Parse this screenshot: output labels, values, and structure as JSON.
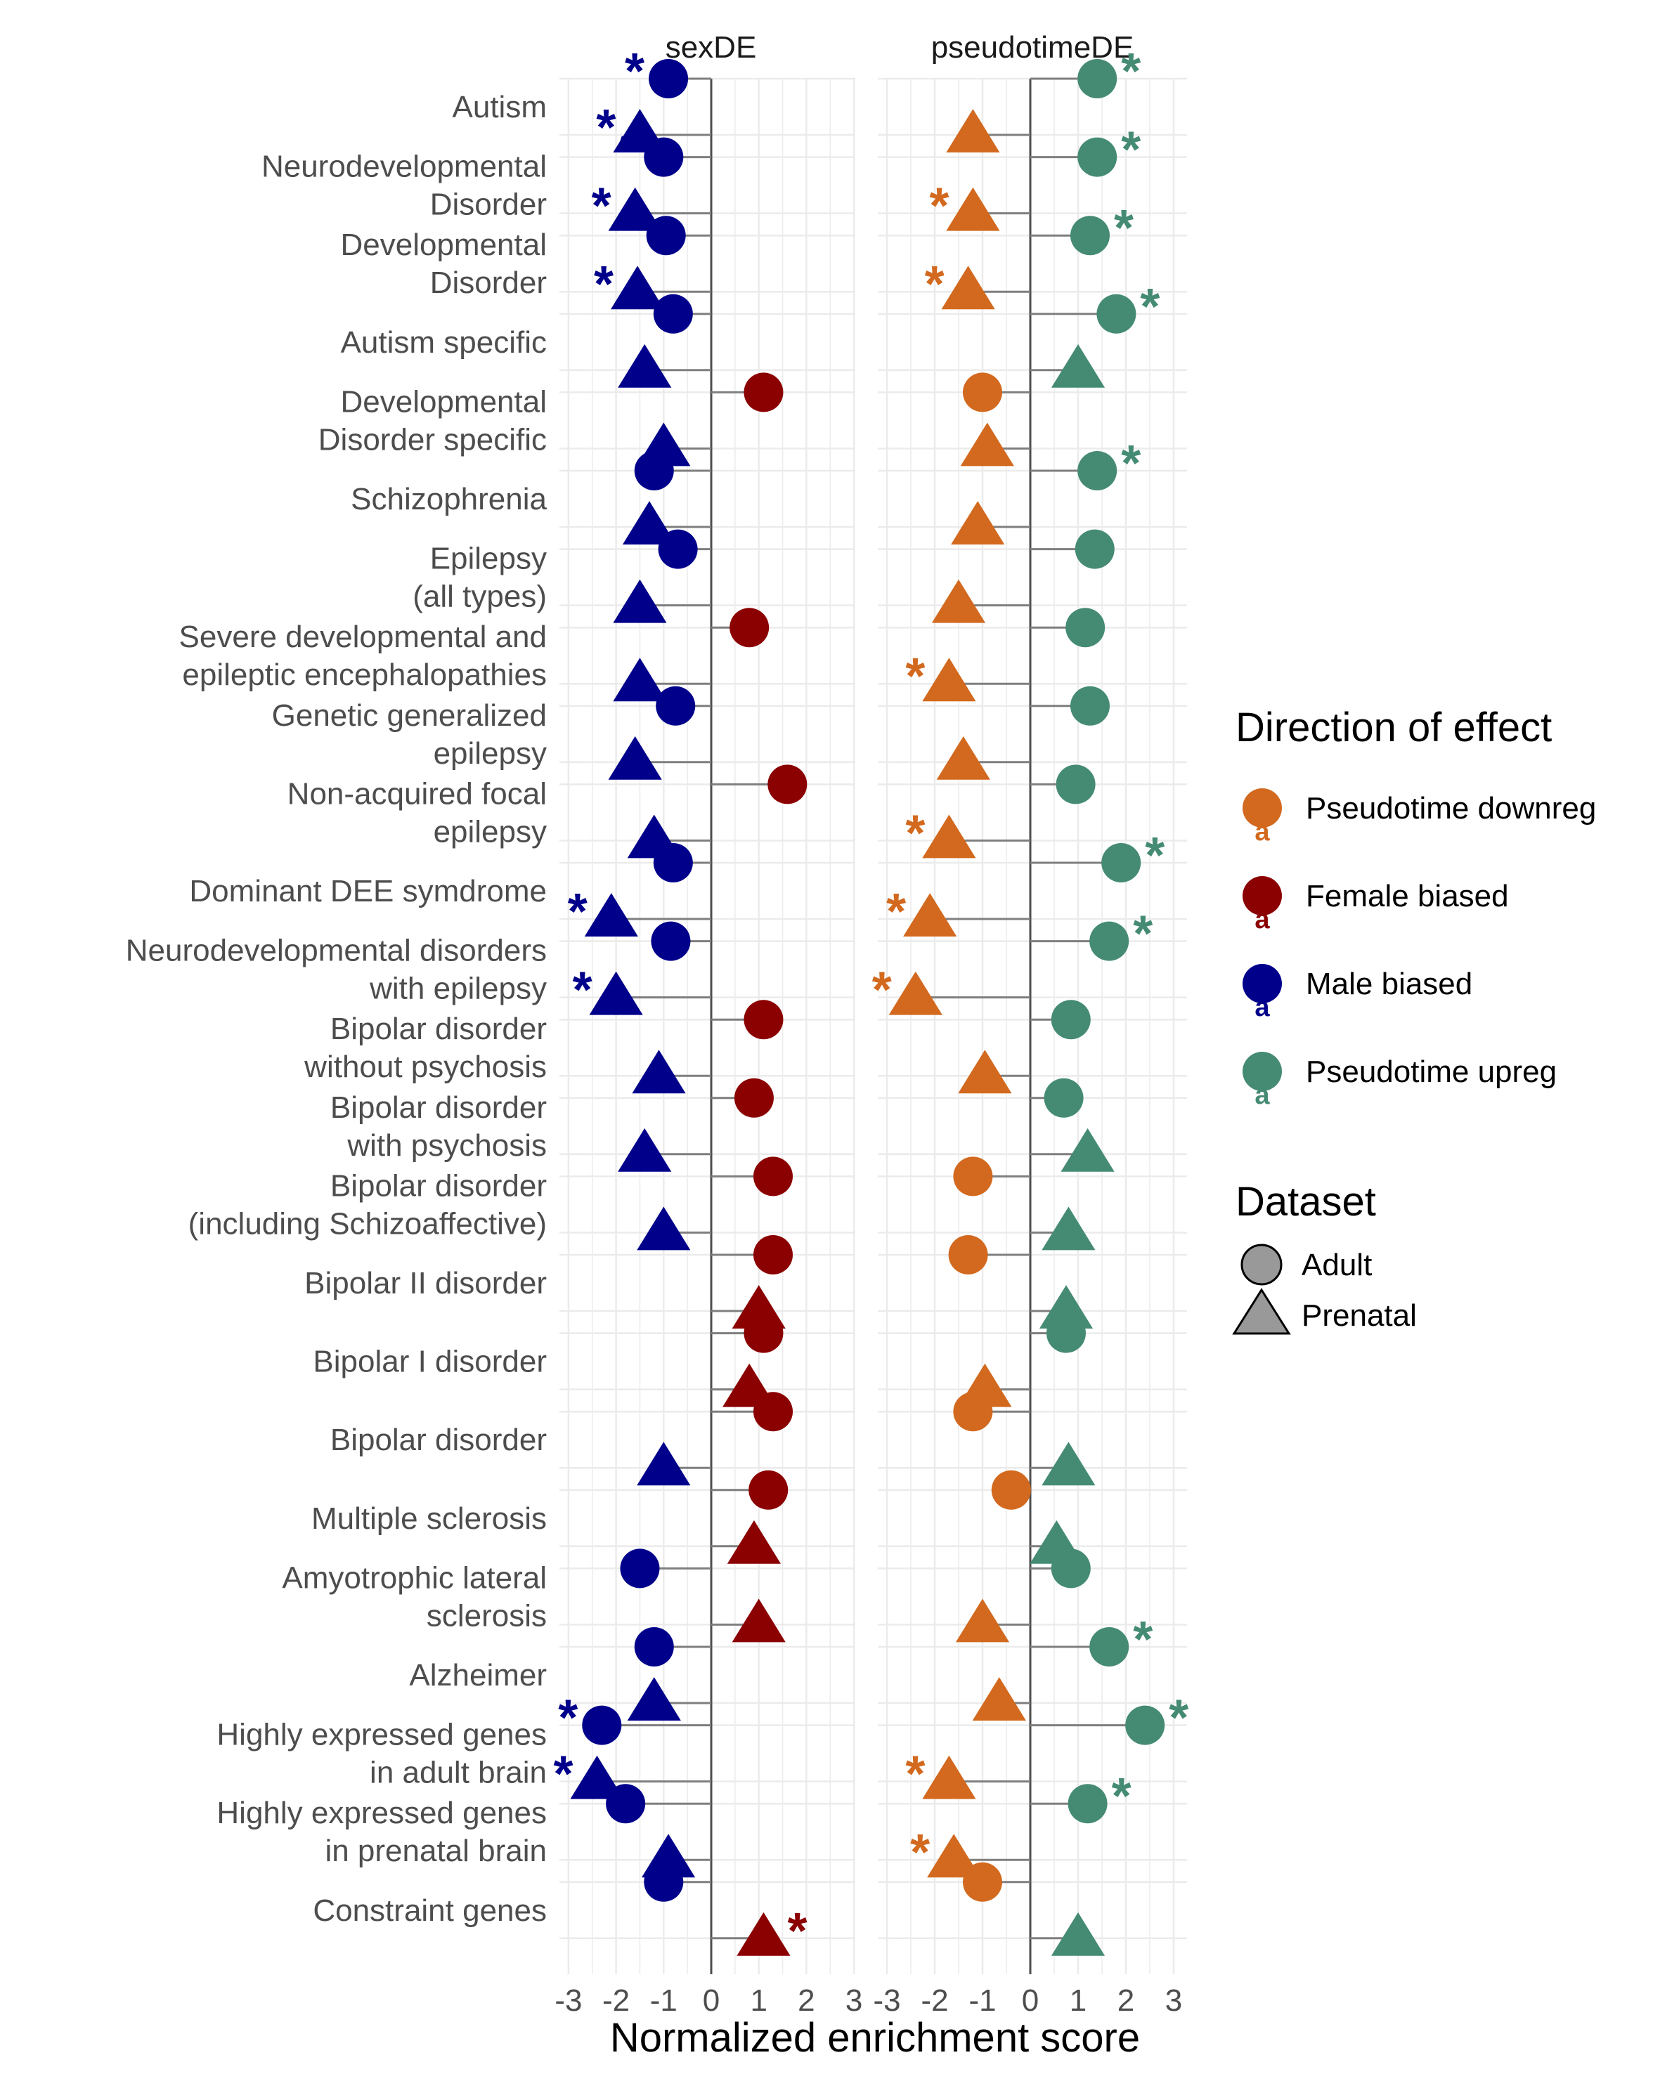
{
  "chart_data": {
    "type": "scatter",
    "xlabel": "Normalized enrichment score",
    "xlim": [
      -3,
      3
    ],
    "xticks": [
      -3,
      -2,
      -1,
      0,
      1,
      2,
      3
    ],
    "grid": true,
    "legend_placement": "right",
    "panels": [
      "sexDE",
      "pseudotimeDE"
    ],
    "categories": [
      "Autism",
      "Neurodevelopmental\nDisorder",
      "Developmental\nDisorder",
      "Autism specific",
      "Developmental\nDisorder specific",
      "Schizophrenia",
      "Epilepsy\n(all types)",
      "Severe developmental and\nepileptic encephalopathies",
      "Genetic generalized\nepilepsy",
      "Non-acquired focal\nepilepsy",
      "Dominant DEE symdrome",
      "Neurodevelopmental disorders\nwith epilepsy",
      "Bipolar disorder\nwithout psychosis",
      "Bipolar disorder\nwith psychosis",
      "Bipolar disorder\n(including Schizoaffective)",
      "Bipolar II disorder",
      "Bipolar I disorder",
      "Bipolar disorder",
      "Multiple sclerosis",
      "Amyotrophic lateral\nsclerosis",
      "Alzheimer",
      "Highly expressed genes\nin adult brain",
      "Highly expressed genes\nin prenatal brain",
      "Constraint genes"
    ],
    "series": [
      {
        "panel": "sexDE",
        "dataset": "Adult",
        "values": [
          -0.9,
          -1.0,
          -0.95,
          -0.8,
          1.1,
          -1.2,
          -0.7,
          0.8,
          -0.75,
          1.6,
          -0.8,
          -0.85,
          1.1,
          0.9,
          1.3,
          1.3,
          1.1,
          1.3,
          1.2,
          -1.5,
          -1.2,
          -2.3,
          -1.8,
          -1.0
        ],
        "significant": [
          true,
          true,
          true,
          false,
          false,
          false,
          false,
          false,
          false,
          false,
          false,
          false,
          false,
          false,
          false,
          false,
          false,
          false,
          false,
          false,
          false,
          true,
          true,
          false
        ]
      },
      {
        "panel": "sexDE",
        "dataset": "Prenatal",
        "values": [
          -1.5,
          -1.6,
          -1.55,
          -1.4,
          -1.0,
          -1.3,
          -1.5,
          -1.5,
          -1.6,
          -1.2,
          -2.1,
          -2.0,
          -1.1,
          -1.4,
          -1.0,
          1.0,
          0.8,
          -1.0,
          0.9,
          1.0,
          -1.2,
          -2.4,
          -0.9,
          1.1
        ],
        "significant": [
          true,
          true,
          true,
          false,
          false,
          false,
          false,
          false,
          false,
          false,
          true,
          true,
          false,
          false,
          false,
          false,
          false,
          false,
          false,
          false,
          false,
          true,
          false,
          true
        ]
      },
      {
        "panel": "pseudotimeDE",
        "dataset": "Adult",
        "values": [
          1.4,
          1.4,
          1.25,
          1.8,
          -1.0,
          1.4,
          1.35,
          1.15,
          1.25,
          0.95,
          1.9,
          1.65,
          0.85,
          0.7,
          -1.2,
          -1.3,
          0.75,
          -1.2,
          -0.4,
          0.85,
          1.65,
          2.4,
          1.2,
          -1.0
        ],
        "significant": [
          true,
          true,
          true,
          true,
          false,
          true,
          false,
          false,
          false,
          false,
          true,
          true,
          false,
          false,
          false,
          false,
          false,
          false,
          false,
          false,
          true,
          true,
          true,
          true
        ]
      },
      {
        "panel": "pseudotimeDE",
        "dataset": "Prenatal",
        "values": [
          -1.2,
          -1.2,
          -1.3,
          1.0,
          -0.9,
          -1.1,
          -1.5,
          -1.7,
          -1.4,
          -1.7,
          -2.1,
          -2.4,
          -0.95,
          1.2,
          0.8,
          0.75,
          -0.95,
          0.8,
          0.55,
          -1.0,
          -0.65,
          -1.7,
          -1.6,
          1.0
        ],
        "significant": [
          false,
          true,
          true,
          false,
          false,
          false,
          false,
          true,
          false,
          true,
          true,
          true,
          false,
          false,
          false,
          false,
          false,
          false,
          false,
          false,
          false,
          true,
          true,
          false
        ]
      }
    ],
    "color_rule": {
      "sexDE": {
        "positive": "Female biased",
        "negative": "Male biased"
      },
      "pseudotimeDE": {
        "positive": "Pseudotime upreg",
        "negative": "Pseudotime downreg"
      }
    },
    "legend": {
      "direction_title": "Direction of effect",
      "direction": [
        {
          "label": "Pseudotime downreg",
          "color": "#d2691e"
        },
        {
          "label": "Female biased",
          "color": "#8b0000"
        },
        {
          "label": "Male biased",
          "color": "#00008b"
        },
        {
          "label": "Pseudotime upreg",
          "color": "#458b74"
        }
      ],
      "dataset_title": "Dataset",
      "dataset": [
        {
          "label": "Adult",
          "shape": "circle"
        },
        {
          "label": "Prenatal",
          "shape": "triangle"
        }
      ]
    },
    "significance_marker": "*"
  }
}
